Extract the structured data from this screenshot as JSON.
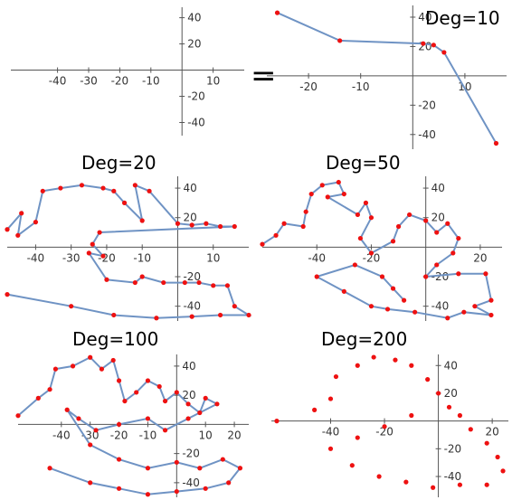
{
  "equals_sign": "=",
  "chart_data": [
    {
      "type": "scatter",
      "title": "",
      "xticks": [
        -40,
        -30,
        -20,
        -10,
        10
      ],
      "yticks": [
        40,
        20,
        -20,
        -40
      ],
      "xlim": [
        -55,
        20
      ],
      "ylim": [
        -50,
        48
      ],
      "series": [
        {
          "values": []
        }
      ]
    },
    {
      "type": "line",
      "title": "Deg=10",
      "xticks": [
        -20,
        -10,
        10
      ],
      "yticks": [
        40,
        20,
        -20,
        -40
      ],
      "xlim": [
        -28,
        18
      ],
      "ylim": [
        -50,
        48
      ],
      "series": [
        {
          "values": [
            [
              -26,
              43
            ],
            [
              -14,
              24
            ],
            [
              2,
              22
            ],
            [
              4,
              21
            ],
            [
              6,
              16
            ],
            [
              16,
              -46
            ]
          ]
        }
      ]
    },
    {
      "type": "line",
      "title": "Deg=20",
      "xticks": [
        -40,
        -30,
        -20,
        -10,
        10
      ],
      "yticks": [
        40,
        20,
        -20,
        -40
      ],
      "xlim": [
        -48,
        20
      ],
      "ylim": [
        -50,
        48
      ],
      "series": [
        {
          "values": [
            [
              -48,
              12
            ],
            [
              -44,
              23
            ],
            [
              -45,
              8
            ],
            [
              -40,
              17
            ],
            [
              -38,
              38
            ],
            [
              -33,
              40
            ],
            [
              -27,
              42
            ],
            [
              -21,
              40
            ],
            [
              -18,
              38
            ],
            [
              -15,
              30
            ],
            [
              -10,
              18
            ],
            [
              -12,
              42
            ],
            [
              -8,
              38
            ],
            [
              0,
              16
            ],
            [
              4,
              15
            ],
            [
              8,
              16
            ],
            [
              12,
              14
            ],
            [
              16,
              14
            ],
            [
              -22,
              10
            ],
            [
              -24,
              2
            ],
            [
              -21,
              -6
            ],
            [
              -25,
              -4
            ],
            [
              -20,
              -22
            ],
            [
              -12,
              -24
            ],
            [
              -10,
              -20
            ],
            [
              -4,
              -24
            ],
            [
              2,
              -24
            ],
            [
              6,
              -24
            ],
            [
              10,
              -26
            ],
            [
              14,
              -26
            ],
            [
              16,
              -40
            ],
            [
              20,
              -46
            ],
            [
              12,
              -46
            ],
            [
              4,
              -47
            ],
            [
              -6,
              -48
            ],
            [
              -18,
              -46
            ],
            [
              -30,
              -40
            ],
            [
              -48,
              -32
            ]
          ]
        }
      ]
    },
    {
      "type": "line",
      "title": "Deg=50",
      "xticks": [
        -40,
        -20,
        20
      ],
      "yticks": [
        40,
        20,
        -20,
        -40
      ],
      "xlim": [
        -60,
        28
      ],
      "ylim": [
        -50,
        48
      ],
      "series": [
        {
          "values": [
            [
              -60,
              2
            ],
            [
              -55,
              8
            ],
            [
              -52,
              16
            ],
            [
              -45,
              14
            ],
            [
              -44,
              24
            ],
            [
              -42,
              36
            ],
            [
              -38,
              42
            ],
            [
              -32,
              44
            ],
            [
              -30,
              36
            ],
            [
              -36,
              34
            ],
            [
              -25,
              22
            ],
            [
              -22,
              30
            ],
            [
              -20,
              20
            ],
            [
              -24,
              6
            ],
            [
              -20,
              -4
            ],
            [
              -12,
              4
            ],
            [
              -10,
              14
            ],
            [
              -6,
              22
            ],
            [
              0,
              18
            ],
            [
              4,
              10
            ],
            [
              8,
              16
            ],
            [
              12,
              6
            ],
            [
              10,
              -4
            ],
            [
              4,
              -12
            ],
            [
              0,
              -20
            ],
            [
              12,
              -18
            ],
            [
              22,
              -18
            ],
            [
              24,
              -36
            ],
            [
              18,
              -40
            ],
            [
              24,
              -46
            ],
            [
              14,
              -44
            ],
            [
              8,
              -48
            ],
            [
              -4,
              -44
            ],
            [
              -14,
              -42
            ],
            [
              -20,
              -40
            ],
            [
              -30,
              -30
            ],
            [
              -40,
              -20
            ],
            [
              -26,
              -12
            ],
            [
              -16,
              -20
            ],
            [
              -12,
              -28
            ],
            [
              -8,
              -36
            ]
          ]
        }
      ]
    },
    {
      "type": "line",
      "title": "Deg=100",
      "xticks": [
        -40,
        -30,
        -20,
        -10,
        10,
        20
      ],
      "yticks": [
        40,
        20,
        -20,
        -40
      ],
      "xlim": [
        -55,
        25
      ],
      "ylim": [
        -50,
        48
      ],
      "series": [
        {
          "values": [
            [
              -55,
              6
            ],
            [
              -48,
              18
            ],
            [
              -44,
              24
            ],
            [
              -42,
              38
            ],
            [
              -36,
              40
            ],
            [
              -30,
              46
            ],
            [
              -26,
              38
            ],
            [
              -22,
              44
            ],
            [
              -20,
              30
            ],
            [
              -18,
              16
            ],
            [
              -14,
              22
            ],
            [
              -10,
              30
            ],
            [
              -6,
              26
            ],
            [
              -4,
              16
            ],
            [
              0,
              22
            ],
            [
              4,
              14
            ],
            [
              8,
              8
            ],
            [
              10,
              18
            ],
            [
              14,
              14
            ],
            [
              4,
              4
            ],
            [
              -4,
              -4
            ],
            [
              -10,
              4
            ],
            [
              -20,
              0
            ],
            [
              -28,
              -4
            ],
            [
              -34,
              4
            ],
            [
              -38,
              10
            ],
            [
              -30,
              -14
            ],
            [
              -20,
              -24
            ],
            [
              -10,
              -30
            ],
            [
              0,
              -26
            ],
            [
              8,
              -30
            ],
            [
              16,
              -24
            ],
            [
              22,
              -30
            ],
            [
              18,
              -40
            ],
            [
              10,
              -44
            ],
            [
              0,
              -46
            ],
            [
              -10,
              -48
            ],
            [
              -20,
              -44
            ],
            [
              -30,
              -40
            ],
            [
              -44,
              -30
            ]
          ]
        }
      ]
    },
    {
      "type": "scatter",
      "title": "Deg=200",
      "xticks": [
        -40,
        -20,
        20
      ],
      "yticks": [
        40,
        20,
        -20,
        -40
      ],
      "xlim": [
        -62,
        26
      ],
      "ylim": [
        -55,
        48
      ],
      "series": [
        {
          "values": [
            [
              -60,
              0
            ],
            [
              -46,
              8
            ],
            [
              -40,
              16
            ],
            [
              -38,
              32
            ],
            [
              -30,
              40
            ],
            [
              -24,
              46
            ],
            [
              -16,
              44
            ],
            [
              -10,
              40
            ],
            [
              -4,
              30
            ],
            [
              0,
              20
            ],
            [
              4,
              10
            ],
            [
              8,
              4
            ],
            [
              12,
              -6
            ],
            [
              18,
              -16
            ],
            [
              22,
              -26
            ],
            [
              24,
              -36
            ],
            [
              18,
              -46
            ],
            [
              8,
              -46
            ],
            [
              -2,
              -48
            ],
            [
              -12,
              -44
            ],
            [
              -22,
              -40
            ],
            [
              -32,
              -32
            ],
            [
              -40,
              -20
            ],
            [
              -30,
              -12
            ],
            [
              -20,
              -4
            ],
            [
              -10,
              4
            ]
          ]
        }
      ]
    }
  ]
}
